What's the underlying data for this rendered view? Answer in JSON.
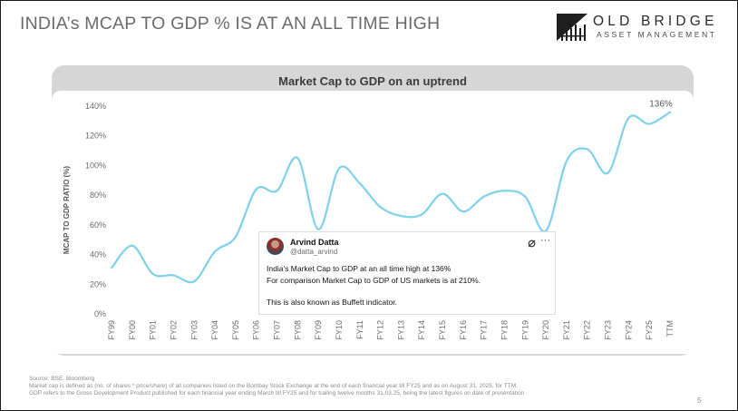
{
  "slide": {
    "title": "INDIA’s MCAP TO GDP % IS AT AN ALL TIME HIGH",
    "page_number": "5"
  },
  "logo": {
    "name": "OLD BRIDGE",
    "subtitle": "ASSET MANAGEMENT"
  },
  "chart_data": {
    "type": "line",
    "title": "Market Cap to GDP on an uptrend",
    "xlabel": "",
    "ylabel": "MCAP TO GDP RATIO (%)",
    "ylim": [
      0,
      140
    ],
    "yticks": [
      0,
      20,
      40,
      60,
      80,
      100,
      120,
      140
    ],
    "ytick_labels": [
      "0%",
      "20%",
      "40%",
      "60%",
      "80%",
      "100%",
      "120%",
      "140%"
    ],
    "grid": false,
    "legend": "none",
    "color": "#7fd1ea",
    "categories": [
      "FY99",
      "FY00",
      "FY01",
      "FY02",
      "FY03",
      "FY04",
      "FY05",
      "FY06",
      "FY07",
      "FY08",
      "FY09",
      "FY10",
      "FY11",
      "FY12",
      "FY13",
      "FY14",
      "FY15",
      "FY16",
      "FY17",
      "FY18",
      "FY19",
      "FY20",
      "FY21",
      "FY22",
      "FY23",
      "FY24",
      "FY25",
      "TTM"
    ],
    "values": [
      31,
      46,
      27,
      26,
      22,
      42,
      52,
      84,
      83,
      105,
      57,
      98,
      88,
      72,
      66,
      67,
      81,
      69,
      79,
      83,
      79,
      56,
      103,
      111,
      95,
      132,
      128,
      136
    ],
    "annotations": [
      {
        "category": "TTM",
        "text": "136%"
      }
    ]
  },
  "tweet": {
    "name": "Arvind Datta",
    "handle": "@datta_arvind",
    "more_icon": "···",
    "lines": [
      "India’s Market Cap to GDP at an all time high at 136%",
      "For comparison Market Cap to GDP of US markets is at 210%.",
      "This is also known as Buffett indicator."
    ]
  },
  "footnotes": [
    "Source: BSE, Bloomberg",
    "Market cap is defined as (no. of shares * price/share)  of all companies listed on the Bombay Stock Exchange at the end of each financial year till FY25 and as on August 31, 2025, for TTM.",
    "GDP refers to the Gross Development Product published for each financial year ending March till FY25 and for trailing twelve months 31.03.25, being the latest figures on date of presentation"
  ]
}
